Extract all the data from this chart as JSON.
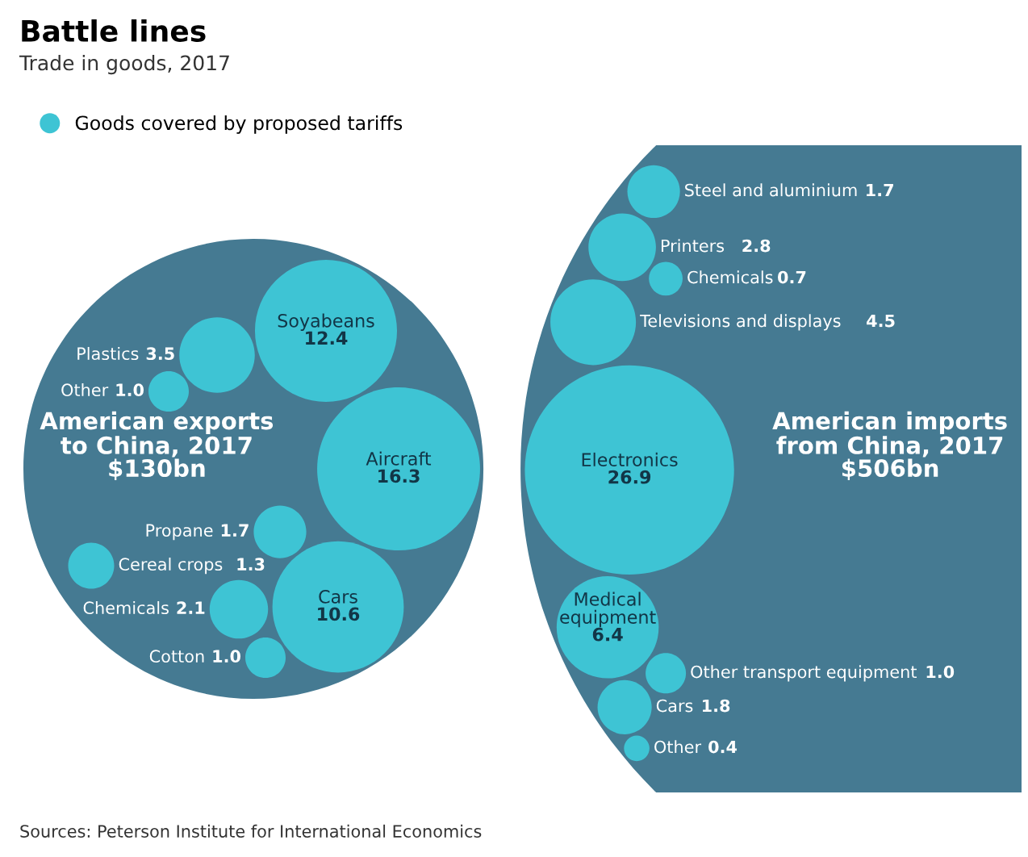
{
  "chart_data": [
    {
      "type": "other",
      "title": "Battle lines",
      "subtitle": "Trade in goods, 2017",
      "legend": "top left",
      "categories": [
        "American exports\nto China, 2017",
        "Plastics",
        "Cereal crops",
        "Soyabeans",
        "Propane",
        "Aircraft",
        "Cotton",
        "Other",
        "Cars",
        "Chemicals"
      ],
      "series": [
        {
          "color": "#457a92",
          "values": [
            130,
            null,
            null,
            null,
            null,
            null,
            null,
            null,
            null,
            null
          ],
          "value_labels": [
            "$130bn",
            null,
            null,
            null,
            null,
            null,
            null,
            null,
            null,
            null
          ]
        },
        {
          "name": "Goods covered by proposed tariffs",
          "color": "#3ec4d4",
          "values": [
            null,
            3.5,
            1.3,
            12.4,
            1.7,
            16.3,
            1.0,
            1.0,
            10.6,
            2.1
          ],
          "value_labels": [
            null,
            "3.5",
            "1.3",
            "12.4",
            "1.7",
            "16.3",
            "1.0",
            "1.0",
            "10.6",
            "2.1"
          ]
        }
      ],
      "annotations": [
        "Sources: Peterson Institute for International Economics"
      ]
    },
    {
      "type": "other",
      "categories": [
        "American imports\nfrom China, 2017",
        "Chemicals",
        "Steel and aluminium",
        "Printers",
        "Televisions and displays",
        "Electronics",
        "Medical\nequipment",
        "Cars",
        "Other transport equipment",
        "Other"
      ],
      "series": [
        {
          "color": "#457a92",
          "values": [
            506,
            null,
            null,
            null,
            null,
            null,
            null,
            null,
            null,
            null
          ],
          "value_labels": [
            "$506bn",
            null,
            null,
            null,
            null,
            null,
            null,
            null,
            null,
            null
          ]
        },
        {
          "color": "#3ec4d4",
          "values": [
            null,
            0.7,
            1.7,
            2.8,
            4.5,
            26.9,
            6.4,
            1.8,
            1.0,
            0.4
          ],
          "value_labels": [
            null,
            "0.7",
            "1.7",
            "2.8",
            "4.5",
            "26.9",
            "6.4",
            "1.8",
            "1.0",
            "0.4"
          ]
        }
      ]
    }
  ]
}
